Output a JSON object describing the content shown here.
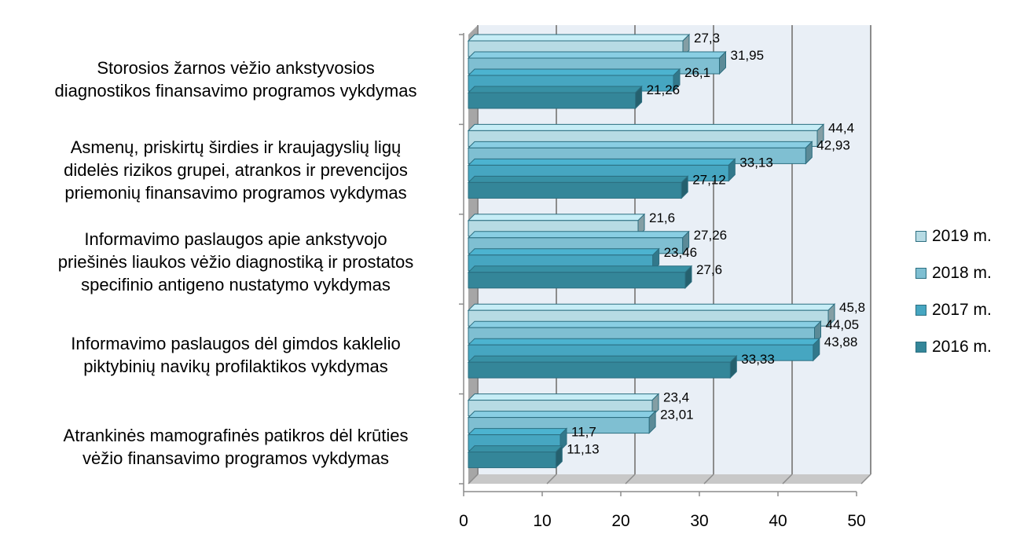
{
  "chart_data": {
    "type": "bar",
    "orientation": "horizontal",
    "categories": [
      "Storosios žarnos vėžio ankstyvosios diagnostikos finansavimo programos vykdymas",
      "Asmenų, priskirtų širdies ir kraujagyslių ligų didelės rizikos grupei, atrankos ir prevencijos priemonių finansavimo programos vykdymas",
      "Informavimo paslaugos apie ankstyvojo priešinės liaukos vėžio diagnostiką ir prostatos specifinio antigeno nustatymo vykdymas",
      "Informavimo paslaugos dėl gimdos kaklelio piktybinių navikų profilaktikos vykdymas",
      "Atrankinės mamografinės patikros dėl krūties vėžio finansavimo programos vykdymas"
    ],
    "category_lines": [
      [
        "Storosios žarnos vėžio ankstyvosios",
        "diagnostikos finansavimo programos vykdymas"
      ],
      [
        "Asmenų, priskirtų širdies ir kraujagyslių ligų",
        "didelės rizikos grupei, atrankos ir prevencijos",
        "priemonių finansavimo programos vykdymas"
      ],
      [
        "Informavimo paslaugos apie ankstyvojo",
        "priešinės liaukos vėžio diagnostiką ir prostatos",
        "specifinio antigeno nustatymo vykdymas"
      ],
      [
        "Informavimo paslaugos dėl gimdos kaklelio",
        "piktybinių navikų profilaktikos vykdymas"
      ],
      [
        "Atrankinės mamografinės patikros dėl krūties",
        "vėžio finansavimo programos vykdymas"
      ]
    ],
    "series": [
      {
        "name": "2019 m.",
        "color": "#b7dbe4",
        "values": [
          27.3,
          44.4,
          21.6,
          45.8,
          23.4
        ],
        "labels": [
          "27,3",
          "44,4",
          "21,6",
          "45,8",
          "23,4"
        ]
      },
      {
        "name": "2018 m.",
        "color": "#7fbfd2",
        "values": [
          31.95,
          42.93,
          27.26,
          44.05,
          23.01
        ],
        "labels": [
          "31,95",
          "42,93",
          "27,26",
          "44,05",
          "23,01"
        ]
      },
      {
        "name": "2017 m.",
        "color": "#46a6c1",
        "values": [
          26.1,
          33.13,
          23.46,
          43.88,
          11.7
        ],
        "labels": [
          "26,1",
          "33,13",
          "23,46",
          "43,88",
          "11,7"
        ]
      },
      {
        "name": "2016 m.",
        "color": "#348699",
        "values": [
          21.26,
          27.12,
          27.6,
          33.33,
          11.13
        ],
        "labels": [
          "21,26",
          "27,12",
          "27,6",
          "33,33",
          "11,13"
        ]
      }
    ],
    "xlim": [
      0,
      50
    ],
    "xticks": [
      0,
      10,
      20,
      30,
      40,
      50
    ],
    "grid": true,
    "legend_position": "right",
    "title": "",
    "xlabel": "",
    "ylabel": ""
  }
}
